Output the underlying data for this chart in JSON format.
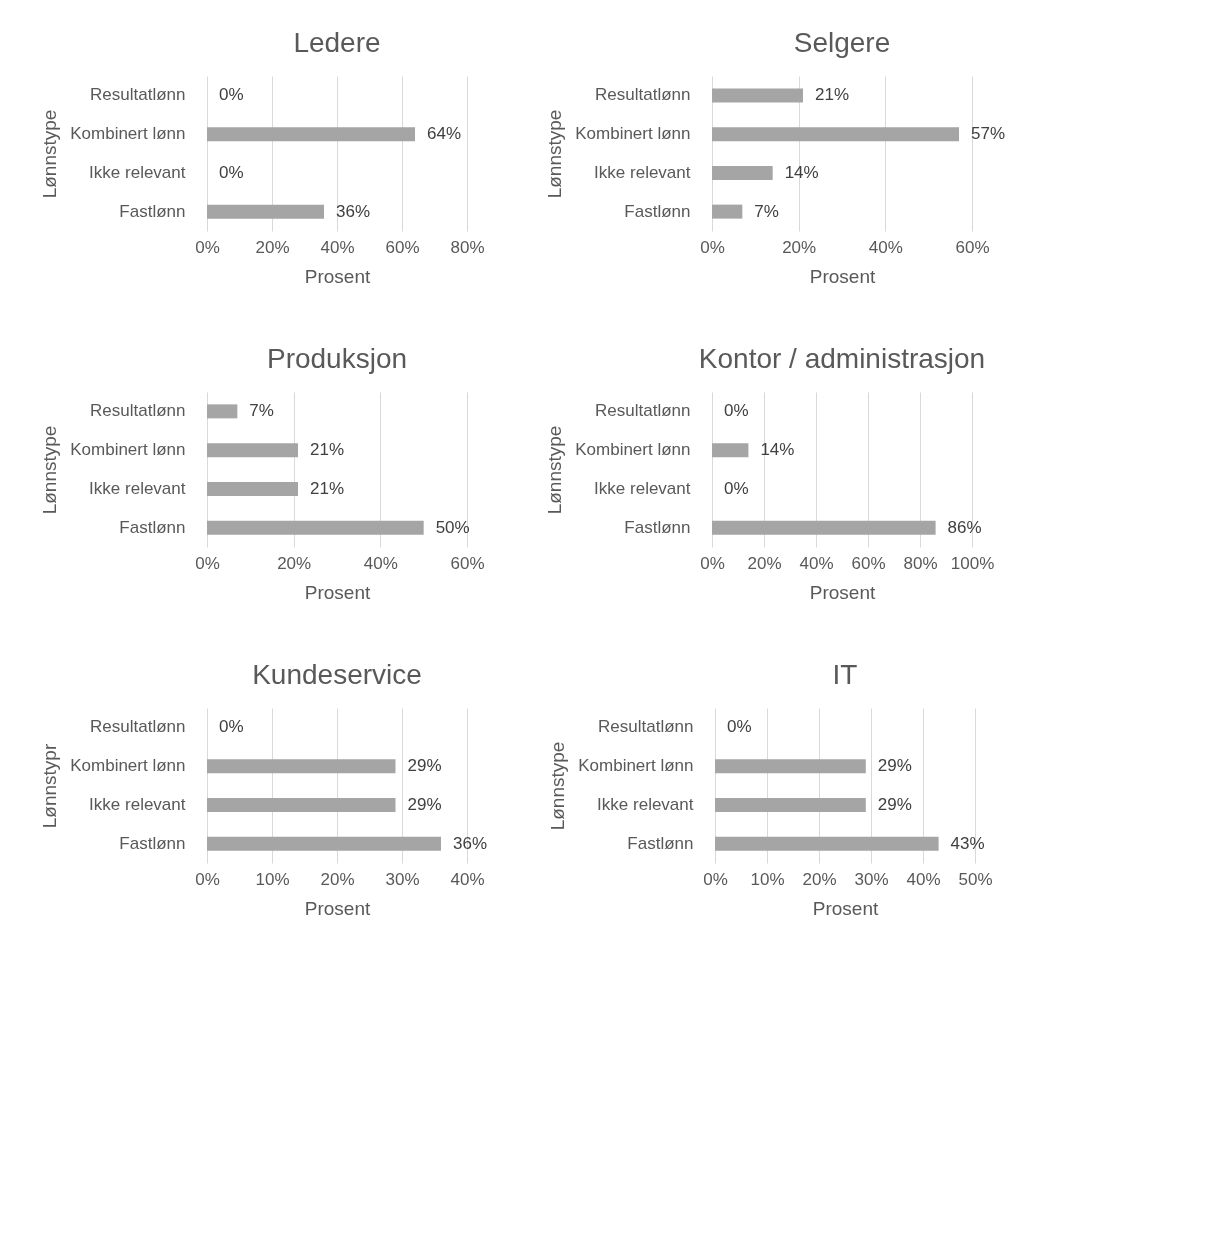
{
  "chart_data": [
    {
      "type": "bar",
      "orientation": "horizontal",
      "title": "Ledere",
      "xlabel": "Prosent",
      "ylabel": "Lønnstype",
      "categories": [
        "Resultatlønn",
        "Kombinert lønn",
        "Ikke relevant",
        "Fastlønn"
      ],
      "values": [
        0,
        64,
        0,
        36
      ],
      "value_labels": [
        "0%",
        "64%",
        "0%",
        "36%"
      ],
      "color": "#a5a5a5",
      "xlim": [
        0,
        80
      ],
      "xticks": [
        {
          "value": 0,
          "label": "0%"
        },
        {
          "value": 20,
          "label": "20%"
        },
        {
          "value": 40,
          "label": "40%"
        },
        {
          "value": 60,
          "label": "60%"
        },
        {
          "value": 80,
          "label": "80%"
        }
      ],
      "grid": "x"
    },
    {
      "type": "bar",
      "orientation": "horizontal",
      "title": "Selgere",
      "xlabel": "Prosent",
      "ylabel": "Lønnstype",
      "categories": [
        "Resultatlønn",
        "Kombinert lønn",
        "Ikke relevant",
        "Fastlønn"
      ],
      "values": [
        21,
        57,
        14,
        7
      ],
      "value_labels": [
        "21%",
        "57%",
        "14%",
        "7%"
      ],
      "color": "#a5a5a5",
      "xlim": [
        0,
        60
      ],
      "xticks": [
        {
          "value": 0,
          "label": "0%"
        },
        {
          "value": 20,
          "label": "20%"
        },
        {
          "value": 40,
          "label": "40%"
        },
        {
          "value": 60,
          "label": "60%"
        }
      ],
      "grid": "x"
    },
    {
      "type": "bar",
      "orientation": "horizontal",
      "title": "Produksjon",
      "xlabel": "Prosent",
      "ylabel": "Lønnstype",
      "categories": [
        "Resultatlønn",
        "Kombinert lønn",
        "Ikke relevant",
        "Fastlønn"
      ],
      "values": [
        7,
        21,
        21,
        50
      ],
      "value_labels": [
        "7%",
        "21%",
        "21%",
        "50%"
      ],
      "color": "#a5a5a5",
      "xlim": [
        0,
        60
      ],
      "xticks": [
        {
          "value": 0,
          "label": "0%"
        },
        {
          "value": 20,
          "label": "20%"
        },
        {
          "value": 40,
          "label": "40%"
        },
        {
          "value": 60,
          "label": "60%"
        }
      ],
      "grid": "x"
    },
    {
      "type": "bar",
      "orientation": "horizontal",
      "title": "Kontor / administrasjon",
      "xlabel": "Prosent",
      "ylabel": "Lønnstype",
      "categories": [
        "Resultatlønn",
        "Kombinert lønn",
        "Ikke relevant",
        "Fastlønn"
      ],
      "values": [
        0,
        14,
        0,
        86
      ],
      "value_labels": [
        "0%",
        "14%",
        "0%",
        "86%"
      ],
      "color": "#a5a5a5",
      "xlim": [
        0,
        100
      ],
      "xticks": [
        {
          "value": 0,
          "label": "0%"
        },
        {
          "value": 20,
          "label": "20%"
        },
        {
          "value": 40,
          "label": "40%"
        },
        {
          "value": 60,
          "label": "60%"
        },
        {
          "value": 80,
          "label": "80%"
        },
        {
          "value": 100,
          "label": "100%"
        }
      ],
      "grid": "x"
    },
    {
      "type": "bar",
      "orientation": "horizontal",
      "title": "Kundeservice",
      "xlabel": "Prosent",
      "ylabel": "Lønnstypr",
      "categories": [
        "Resultatlønn",
        "Kombinert lønn",
        "Ikke relevant",
        "Fastlønn"
      ],
      "values": [
        0,
        29,
        29,
        36
      ],
      "value_labels": [
        "0%",
        "29%",
        "29%",
        "36%"
      ],
      "color": "#a5a5a5",
      "xlim": [
        0,
        40
      ],
      "xticks": [
        {
          "value": 0,
          "label": "0%"
        },
        {
          "value": 10,
          "label": "10%"
        },
        {
          "value": 20,
          "label": "20%"
        },
        {
          "value": 30,
          "label": "30%"
        },
        {
          "value": 40,
          "label": "40%"
        }
      ],
      "grid": "x"
    },
    {
      "type": "bar",
      "orientation": "horizontal",
      "title": "IT",
      "xlabel": "Prosent",
      "ylabel": "Lønnstype",
      "categories": [
        "Resultatlønn",
        "Kombinert lønn",
        "Ikke relevant",
        "Fastlønn"
      ],
      "values": [
        0,
        29,
        29,
        43
      ],
      "value_labels": [
        "0%",
        "29%",
        "29%",
        "43%"
      ],
      "color": "#a5a5a5",
      "xlim": [
        0,
        50
      ],
      "xticks": [
        {
          "value": 0,
          "label": "0%"
        },
        {
          "value": 10,
          "label": "10%"
        },
        {
          "value": 20,
          "label": "20%"
        },
        {
          "value": 30,
          "label": "30%"
        },
        {
          "value": 40,
          "label": "40%"
        },
        {
          "value": 50,
          "label": "50%"
        }
      ],
      "grid": "x"
    }
  ]
}
